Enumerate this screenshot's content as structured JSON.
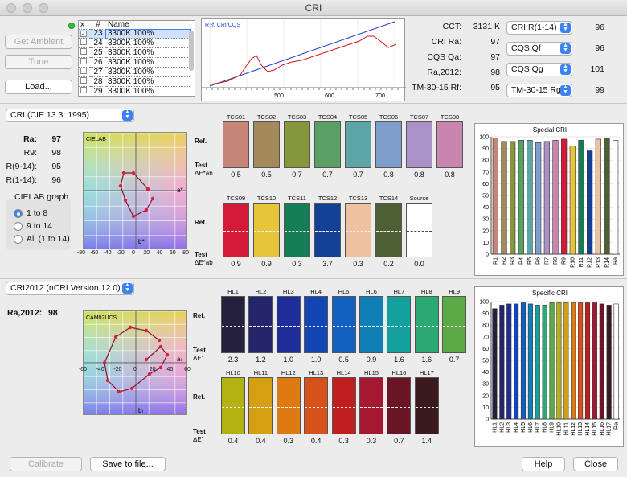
{
  "window": {
    "title": "CRI"
  },
  "left_buttons": {
    "get_ambient": "Get Ambient",
    "tune": "Tune",
    "load": "Load..."
  },
  "sample_list": {
    "headers": [
      "x",
      "#",
      "Name"
    ],
    "rows": [
      {
        "checked": true,
        "num": "23",
        "name": "3300K 100%",
        "selected": true
      },
      {
        "checked": false,
        "num": "24",
        "name": "3300K 100%"
      },
      {
        "checked": false,
        "num": "25",
        "name": "3300K 100%"
      },
      {
        "checked": false,
        "num": "26",
        "name": "3300K 100%"
      },
      {
        "checked": false,
        "num": "27",
        "name": "3300K 100%"
      },
      {
        "checked": false,
        "num": "28",
        "name": "3300K 100%"
      },
      {
        "checked": false,
        "num": "29",
        "name": "3300K 100%"
      }
    ]
  },
  "spectrum": {
    "legend": "Ref. CRI/CQS",
    "x_ticks": [
      "500",
      "600",
      "700"
    ],
    "colors": {
      "ref": "#2b3fd1",
      "test": "#d0181e"
    }
  },
  "metrics": [
    {
      "label": "CCT:",
      "value": "3131 K"
    },
    {
      "label": "CRI Ra:",
      "value": "97"
    },
    {
      "label": "CQS Qa:",
      "value": "97"
    },
    {
      "label": "Ra,2012:",
      "value": "98"
    },
    {
      "label": "TM-30-15 Rf:",
      "value": "95"
    }
  ],
  "right_selects": [
    {
      "label": "CRI R(1-14)",
      "value": "96"
    },
    {
      "label": "CQS Qf",
      "value": "96"
    },
    {
      "label": "CQS Qg",
      "value": "101"
    },
    {
      "label": "TM-30-15 Rg",
      "value": "99"
    }
  ],
  "cri_section": {
    "method_select": "CRI (CIE 13.3: 1995)",
    "stats": [
      {
        "label": "Ra:",
        "value": "97",
        "bold": true
      },
      {
        "label": "R9:",
        "value": "98"
      },
      {
        "label": "R(9-14):",
        "value": "95"
      },
      {
        "label": "R(1-14):",
        "value": "96"
      }
    ],
    "graph_box": {
      "title": "CIELAB graph",
      "options": [
        "1 to 8",
        "9 to 14",
        "All (1 to 14)"
      ],
      "selected": 0
    },
    "cielab": {
      "label": "CIELAB",
      "a_label": "a*",
      "b_label": "b*",
      "ticks": [
        "-80",
        "-60",
        "-40",
        "-20",
        "0",
        "20",
        "40",
        "60",
        "80"
      ]
    },
    "row_ref": "Ref.",
    "row_test": "Test",
    "row_delta": "ΔE*ab",
    "swatches_row1": [
      {
        "name": "TCS01",
        "color": "#c7857a",
        "delta": "0.5"
      },
      {
        "name": "TCS02",
        "color": "#a48a5b",
        "delta": "0.5"
      },
      {
        "name": "TCS03",
        "color": "#85963c",
        "delta": "0.7"
      },
      {
        "name": "TCS04",
        "color": "#5aa064",
        "delta": "0.7"
      },
      {
        "name": "TCS05",
        "color": "#5ea5a7",
        "delta": "0.7"
      },
      {
        "name": "TCS06",
        "color": "#7f9ecb",
        "delta": "0.8"
      },
      {
        "name": "TCS07",
        "color": "#a892c6",
        "delta": "0.8"
      },
      {
        "name": "TCS08",
        "color": "#c886af",
        "delta": "0.8"
      }
    ],
    "swatches_row2": [
      {
        "name": "TCS09",
        "color": "#d51939",
        "delta": "0.9"
      },
      {
        "name": "TCS10",
        "color": "#e7c53a",
        "delta": "0.9"
      },
      {
        "name": "TCS11",
        "color": "#157d55",
        "delta": "0.3"
      },
      {
        "name": "TCS12",
        "color": "#133f94",
        "delta": "3.7"
      },
      {
        "name": "TCS13",
        "color": "#eec2a0",
        "delta": "0.3"
      },
      {
        "name": "TCS14",
        "color": "#4d6033",
        "delta": "0.2"
      },
      {
        "name": "Source",
        "color": "#ffffff",
        "delta": "0.0"
      }
    ],
    "chart_title": "Special CRI"
  },
  "cri2012_section": {
    "method_select": "CRI2012 (nCRI Version 12.0)",
    "stat": {
      "label": "Ra,2012:",
      "value": "98"
    },
    "cam": {
      "label": "CAM02UCS",
      "a_label": "aₗ",
      "b_label": "bₗ",
      "ticks": [
        "-60",
        "-40",
        "-20",
        "0",
        "20",
        "40",
        "60"
      ]
    },
    "row_ref": "Ref.",
    "row_test": "Test",
    "row_delta": "ΔE'",
    "swatches_row1": [
      {
        "name": "HL1",
        "color": "#26203f",
        "delta": "2.3"
      },
      {
        "name": "HL2",
        "color": "#24246a",
        "delta": "1.2"
      },
      {
        "name": "HL3",
        "color": "#1e2d9a",
        "delta": "1.0"
      },
      {
        "name": "HL4",
        "color": "#1445b5",
        "delta": "1.0"
      },
      {
        "name": "HL5",
        "color": "#1260c0",
        "delta": "0.5"
      },
      {
        "name": "HL6",
        "color": "#0f7fb5",
        "delta": "0.9"
      },
      {
        "name": "HL7",
        "color": "#14a09d",
        "delta": "1.6"
      },
      {
        "name": "HL8",
        "color": "#2aaa72",
        "delta": "1.6"
      },
      {
        "name": "HL9",
        "color": "#5aaa47",
        "delta": "0.7"
      }
    ],
    "swatches_row2": [
      {
        "name": "HL10",
        "color": "#b2b310",
        "delta": "0.4"
      },
      {
        "name": "HL11",
        "color": "#d49f10",
        "delta": "0.4"
      },
      {
        "name": "HL12",
        "color": "#dd7a12",
        "delta": "0.3"
      },
      {
        "name": "HL13",
        "color": "#d6521a",
        "delta": "0.4"
      },
      {
        "name": "HL14",
        "color": "#c01d1f",
        "delta": "0.3"
      },
      {
        "name": "HL15",
        "color": "#a6182f",
        "delta": "0.3"
      },
      {
        "name": "HL16",
        "color": "#6a1426",
        "delta": "0.7"
      },
      {
        "name": "HL17",
        "color": "#3b1a1f",
        "delta": "1.4"
      }
    ],
    "chart_title": "Specific CRI"
  },
  "bottom_buttons": {
    "calibrate": "Calibrate",
    "save": "Save to file...",
    "help": "Help",
    "close": "Close"
  },
  "chart_data": [
    {
      "type": "bar",
      "title": "Special CRI",
      "categories": [
        "R1",
        "R2",
        "R3",
        "R4",
        "R5",
        "R6",
        "R7",
        "R8",
        "R9",
        "R10",
        "R11",
        "R12",
        "R13",
        "R14",
        "Ra"
      ],
      "values": [
        99,
        96,
        96,
        97,
        97,
        95,
        96,
        97,
        98,
        92,
        97,
        88,
        98,
        99,
        97
      ],
      "colors": [
        "#c7857a",
        "#a48a5b",
        "#85963c",
        "#5aa064",
        "#5ea5a7",
        "#7f9ecb",
        "#a892c6",
        "#c886af",
        "#d51939",
        "#e7c53a",
        "#157d55",
        "#133f94",
        "#eec2a0",
        "#4d6033",
        "#ffffff"
      ],
      "ylim": [
        0,
        100
      ],
      "yticks": [
        "0",
        "10",
        "20",
        "30",
        "40",
        "50",
        "60",
        "70",
        "80",
        "90",
        "100"
      ]
    },
    {
      "type": "bar",
      "title": "Specific CRI",
      "categories": [
        "HL1",
        "HL2",
        "HL3",
        "HL4",
        "HL5",
        "HL6",
        "HL7",
        "HL8",
        "HL9",
        "HL10",
        "HL11",
        "HL12",
        "HL13",
        "HL14",
        "HL15",
        "HL16",
        "HL17",
        "Ra"
      ],
      "values": [
        94,
        97,
        98,
        98,
        99,
        98,
        97,
        97,
        99,
        99,
        99,
        99,
        99,
        99,
        99,
        98,
        97,
        98
      ],
      "colors": [
        "#26203f",
        "#24246a",
        "#1e2d9a",
        "#1445b5",
        "#1260c0",
        "#0f7fb5",
        "#14a09d",
        "#2aaa72",
        "#5aaa47",
        "#b2b310",
        "#d49f10",
        "#dd7a12",
        "#d6521a",
        "#c01d1f",
        "#a6182f",
        "#6a1426",
        "#3b1a1f",
        "#ffffff"
      ],
      "ylim": [
        0,
        100
      ],
      "yticks": [
        "0",
        "10",
        "20",
        "30",
        "40",
        "50",
        "60",
        "70",
        "80",
        "90",
        "100"
      ]
    }
  ]
}
